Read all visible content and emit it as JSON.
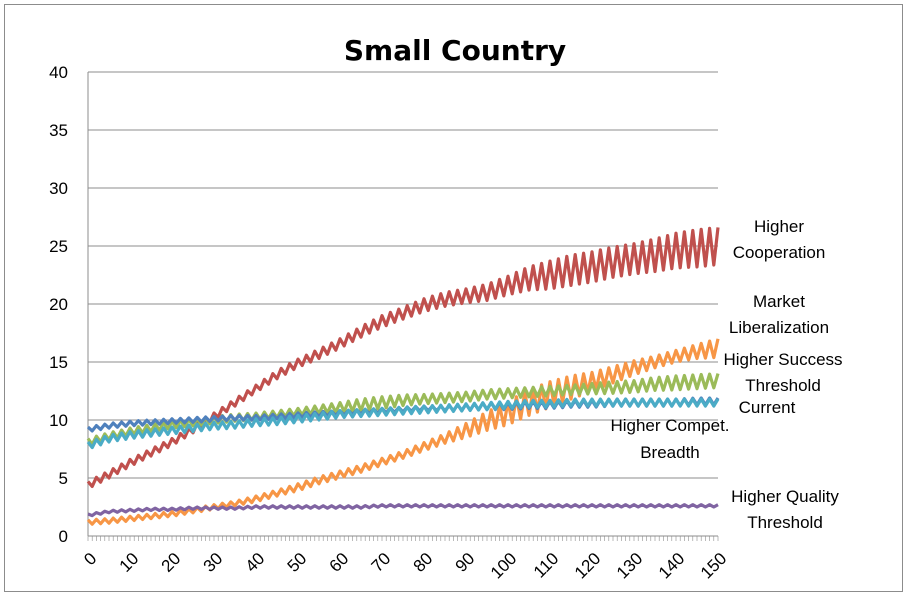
{
  "chart_data": {
    "type": "line",
    "title": "Small Country",
    "xlabel": "",
    "ylabel": "",
    "xlim": [
      0,
      150
    ],
    "ylim": [
      0,
      40
    ],
    "y_ticks": [
      0,
      5,
      10,
      15,
      20,
      25,
      30,
      35,
      40
    ],
    "x_tick_labels": [
      "0",
      "10",
      "20",
      "30",
      "40",
      "50",
      "60",
      "70",
      "80",
      "90",
      "100",
      "110",
      "120",
      "130",
      "140",
      "150"
    ],
    "grid": "horizontal",
    "legend": "inline-right",
    "series": [
      {
        "name": "Higher Cooperation",
        "color": "#C0504D",
        "x": [
          0,
          5,
          10,
          15,
          20,
          25,
          30,
          35,
          40,
          45,
          50,
          55,
          60,
          65,
          70,
          75,
          80,
          85,
          90,
          95,
          100,
          105,
          110,
          115,
          120,
          125,
          130,
          135,
          140,
          145,
          150
        ],
        "y": [
          4.4,
          5.3,
          6.3,
          7.2,
          8.1,
          9.2,
          10.3,
          11.5,
          12.7,
          13.9,
          14.9,
          15.7,
          16.6,
          17.6,
          18.5,
          19.2,
          19.9,
          20.4,
          20.7,
          21.0,
          21.6,
          22.2,
          22.5,
          22.9,
          23.2,
          23.6,
          23.9,
          24.2,
          24.6,
          24.8,
          25.0
        ],
        "oscillation": [
          0.3,
          0.3,
          0.3,
          0.3,
          0.3,
          0.3,
          0.3,
          0.3,
          0.3,
          0.35,
          0.35,
          0.4,
          0.4,
          0.45,
          0.5,
          0.5,
          0.55,
          0.6,
          0.6,
          0.7,
          0.8,
          1.0,
          1.2,
          1.3,
          1.3,
          1.3,
          1.3,
          1.4,
          1.5,
          1.6,
          1.6
        ]
      },
      {
        "name": "Market Liberalization",
        "color": "#F79646",
        "x": [
          0,
          5,
          10,
          15,
          20,
          25,
          30,
          35,
          40,
          45,
          50,
          55,
          60,
          65,
          70,
          75,
          80,
          85,
          90,
          95,
          100,
          105,
          110,
          115,
          120,
          125,
          130,
          135,
          140,
          145,
          150
        ],
        "y": [
          1.2,
          1.3,
          1.5,
          1.7,
          1.9,
          2.2,
          2.5,
          2.8,
          3.2,
          3.7,
          4.2,
          4.8,
          5.3,
          5.8,
          6.4,
          7.0,
          7.7,
          8.4,
          9.1,
          9.9,
          10.6,
          11.5,
          12.2,
          12.8,
          13.3,
          13.9,
          14.5,
          15.0,
          15.5,
          15.9,
          16.2
        ],
        "oscillation": [
          0.2,
          0.2,
          0.2,
          0.2,
          0.2,
          0.2,
          0.2,
          0.2,
          0.25,
          0.25,
          0.3,
          0.3,
          0.3,
          0.3,
          0.3,
          0.3,
          0.35,
          0.4,
          0.6,
          0.8,
          1.0,
          1.1,
          1.1,
          1.0,
          0.8,
          0.7,
          0.6,
          0.5,
          0.5,
          0.6,
          0.8
        ]
      },
      {
        "name": "Higher Success Threshold",
        "color": "#9BBB59",
        "x": [
          0,
          5,
          10,
          15,
          20,
          25,
          30,
          35,
          40,
          45,
          50,
          55,
          60,
          65,
          70,
          75,
          80,
          85,
          90,
          95,
          100,
          105,
          110,
          115,
          120,
          125,
          130,
          135,
          140,
          145,
          150
        ],
        "y": [
          8.1,
          8.6,
          9.0,
          9.3,
          9.6,
          9.8,
          10.0,
          10.2,
          10.3,
          10.5,
          10.7,
          10.9,
          11.1,
          11.3,
          11.5,
          11.7,
          11.8,
          11.9,
          12.0,
          12.2,
          12.3,
          12.4,
          12.5,
          12.6,
          12.7,
          12.8,
          12.9,
          13.1,
          13.2,
          13.3,
          13.4
        ],
        "oscillation": [
          0.3,
          0.3,
          0.3,
          0.3,
          0.3,
          0.3,
          0.3,
          0.3,
          0.3,
          0.3,
          0.3,
          0.35,
          0.4,
          0.5,
          0.5,
          0.45,
          0.4,
          0.4,
          0.4,
          0.4,
          0.4,
          0.4,
          0.4,
          0.4,
          0.45,
          0.5,
          0.5,
          0.55,
          0.6,
          0.6,
          0.6
        ]
      },
      {
        "name": "Current",
        "color": "#4F81BD",
        "x": [
          0,
          5,
          10,
          15,
          20,
          25,
          30,
          35,
          40,
          45,
          50,
          55,
          60,
          65,
          70,
          75,
          80,
          85,
          90,
          95,
          100,
          105,
          110,
          115,
          120,
          125,
          130,
          135,
          140,
          145,
          150
        ],
        "y": [
          9.2,
          9.5,
          9.7,
          9.8,
          9.9,
          10.0,
          10.1,
          10.2,
          10.2,
          10.3,
          10.4,
          10.5,
          10.6,
          10.7,
          10.8,
          10.9,
          11.0,
          11.0,
          11.1,
          11.2,
          11.2,
          11.3,
          11.3,
          11.4,
          11.4,
          11.5,
          11.5,
          11.5,
          11.5,
          11.6,
          11.6
        ],
        "oscillation": [
          0.2,
          0.2,
          0.2,
          0.2,
          0.2,
          0.2,
          0.2,
          0.2,
          0.2,
          0.2,
          0.2,
          0.2,
          0.2,
          0.2,
          0.2,
          0.2,
          0.2,
          0.2,
          0.25,
          0.3,
          0.3,
          0.3,
          0.3,
          0.3,
          0.3,
          0.3,
          0.3,
          0.3,
          0.3,
          0.3,
          0.3
        ]
      },
      {
        "name": "Higher Compet. Breadth",
        "color": "#4BACC6",
        "x": [
          0,
          5,
          10,
          15,
          20,
          25,
          30,
          35,
          40,
          45,
          50,
          55,
          60,
          65,
          70,
          75,
          80,
          85,
          90,
          95,
          100,
          105,
          110,
          115,
          120,
          125,
          130,
          135,
          140,
          145,
          150
        ],
        "y": [
          7.8,
          8.4,
          8.7,
          8.9,
          9.1,
          9.3,
          9.5,
          9.6,
          9.8,
          9.9,
          10.1,
          10.3,
          10.5,
          10.6,
          10.7,
          10.8,
          10.9,
          11.0,
          11.1,
          11.2,
          11.3,
          11.4,
          11.4,
          11.5,
          11.5,
          11.5,
          11.5,
          11.5,
          11.5,
          11.5,
          11.5
        ],
        "oscillation": [
          0.3,
          0.3,
          0.3,
          0.3,
          0.3,
          0.3,
          0.3,
          0.3,
          0.3,
          0.3,
          0.3,
          0.3,
          0.3,
          0.3,
          0.3,
          0.3,
          0.3,
          0.3,
          0.3,
          0.3,
          0.3,
          0.3,
          0.3,
          0.3,
          0.3,
          0.3,
          0.3,
          0.3,
          0.3,
          0.3,
          0.3
        ]
      },
      {
        "name": "Higher Quality Threshold",
        "color": "#8064A2",
        "x": [
          0,
          5,
          10,
          15,
          20,
          25,
          30,
          35,
          40,
          45,
          50,
          55,
          60,
          65,
          70,
          75,
          80,
          85,
          90,
          95,
          100,
          105,
          110,
          115,
          120,
          125,
          130,
          135,
          140,
          145,
          150
        ],
        "y": [
          1.8,
          2.1,
          2.2,
          2.3,
          2.3,
          2.4,
          2.4,
          2.4,
          2.5,
          2.5,
          2.5,
          2.5,
          2.5,
          2.5,
          2.6,
          2.6,
          2.6,
          2.6,
          2.6,
          2.6,
          2.6,
          2.6,
          2.6,
          2.6,
          2.6,
          2.6,
          2.6,
          2.6,
          2.6,
          2.6,
          2.6
        ],
        "oscillation": [
          0.1,
          0.1,
          0.1,
          0.1,
          0.1,
          0.1,
          0.1,
          0.1,
          0.1,
          0.1,
          0.1,
          0.1,
          0.1,
          0.1,
          0.1,
          0.1,
          0.1,
          0.1,
          0.1,
          0.1,
          0.1,
          0.1,
          0.1,
          0.1,
          0.1,
          0.1,
          0.1,
          0.1,
          0.1,
          0.1,
          0.1
        ]
      }
    ],
    "series_labels": [
      {
        "series": "Higher Cooperation",
        "lines": [
          "Higher",
          "Cooperation"
        ]
      },
      {
        "series": "Market Liberalization",
        "lines": [
          "Market",
          "Liberalization"
        ]
      },
      {
        "series": "Higher Success Threshold",
        "lines": [
          "Higher Success",
          "Threshold"
        ]
      },
      {
        "series": "Current",
        "lines": [
          "Current"
        ]
      },
      {
        "series": "Higher Compet. Breadth",
        "lines": [
          "Higher Compet.",
          "Breadth"
        ]
      },
      {
        "series": "Higher Quality Threshold",
        "lines": [
          "Higher Quality",
          "Threshold"
        ]
      }
    ]
  }
}
